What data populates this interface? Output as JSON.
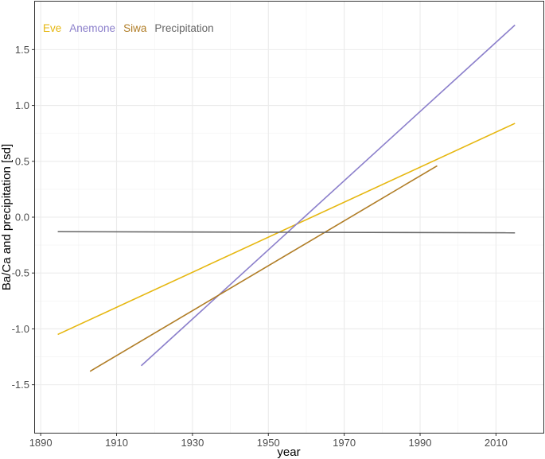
{
  "chart_data": {
    "type": "line",
    "title": "",
    "xlabel": "year",
    "ylabel": "Ba/Ca and precipitation [sd]",
    "xlim": [
      1888.5,
      2022.5
    ],
    "ylim": [
      -1.93,
      1.93
    ],
    "x_ticks": [
      1890,
      1910,
      1930,
      1950,
      1970,
      1990,
      2010
    ],
    "x_tick_labels": [
      "1890",
      "1910",
      "1930",
      "1950",
      "1970",
      "1990",
      "2010"
    ],
    "y_ticks": [
      1.5,
      1.0,
      0.5,
      0.0,
      -0.5,
      -1.0,
      -1.5
    ],
    "y_tick_labels": [
      "1.5",
      "1.0",
      "0.5",
      "0.0",
      "-0.5",
      "-1.0",
      "-1.5"
    ],
    "grid": true,
    "legend_position": "top-left",
    "legend_orientation": "horizontal",
    "series": [
      {
        "name": "Eve",
        "color": "#E6B710",
        "x": [
          1894.5,
          2015
        ],
        "y": [
          -1.05,
          0.84
        ]
      },
      {
        "name": "Anemone",
        "color": "#8B7FCB",
        "x": [
          1916.5,
          2015
        ],
        "y": [
          -1.33,
          1.72
        ]
      },
      {
        "name": "Siwa",
        "color": "#B07D26",
        "x": [
          1903,
          1994.5
        ],
        "y": [
          -1.38,
          0.46
        ]
      },
      {
        "name": "Precipitation",
        "color": "#666666",
        "x": [
          1894.5,
          2015
        ],
        "y": [
          -0.13,
          -0.14
        ]
      }
    ]
  }
}
